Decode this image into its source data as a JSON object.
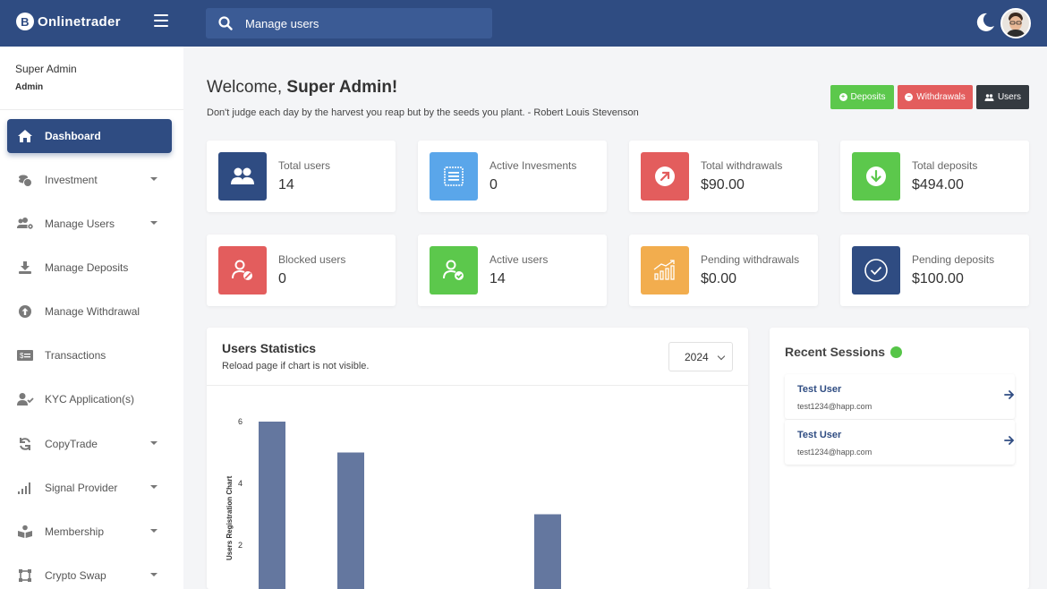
{
  "app": {
    "logo_text": "Onlinetrader",
    "logo_mark": "B"
  },
  "header": {
    "search_placeholder": "Manage users",
    "icons": [
      "menu-icon",
      "search-icon",
      "moon-icon"
    ]
  },
  "user": {
    "name": "Super Admin",
    "role": "Admin"
  },
  "sidebar": {
    "items": [
      {
        "label": "Dashboard",
        "icon": "home-icon",
        "active": true,
        "has_caret": false
      },
      {
        "label": "Investment",
        "icon": "coins-icon",
        "has_caret": true
      },
      {
        "label": "Manage Users",
        "icon": "users-cog-icon",
        "has_caret": true
      },
      {
        "label": "Manage Deposits",
        "icon": "download-icon",
        "has_caret": false
      },
      {
        "label": "Manage Withdrawal",
        "icon": "arrow-up-circle-icon",
        "has_caret": false
      },
      {
        "label": "Transactions",
        "icon": "money-bill-icon",
        "has_caret": false
      },
      {
        "label": "KYC Application(s)",
        "icon": "user-check-icon",
        "has_caret": false
      },
      {
        "label": "CopyTrade",
        "icon": "sync-icon",
        "has_caret": true
      },
      {
        "label": "Signal Provider",
        "icon": "signal-icon",
        "has_caret": true
      },
      {
        "label": "Membership",
        "icon": "book-reader-icon",
        "has_caret": true
      },
      {
        "label": "Crypto Swap",
        "icon": "vector-square-icon",
        "has_caret": true
      }
    ]
  },
  "main": {
    "welcome_prefix": "Welcome,",
    "welcome_name": "Super Admin!",
    "quote": "Don't judge each day by the harvest you reap but by the seeds you plant. - Robert Louis Stevenson",
    "quick_buttons": [
      {
        "label": "Deposits",
        "color": "#5cc84c"
      },
      {
        "label": "Withdrawals",
        "color": "#e35d5d"
      },
      {
        "label": "Users",
        "color": "#343a40"
      }
    ],
    "cards": [
      {
        "label": "Total users",
        "value": "14",
        "color": "#2f4c82",
        "icon": "users-icon"
      },
      {
        "label": "Active Invesments",
        "value": "0",
        "color": "#5aa6ea",
        "icon": "receipt-icon"
      },
      {
        "label": "Total withdrawals",
        "value": "$90.00",
        "color": "#e35d5d",
        "icon": "arrow-up-right-icon"
      },
      {
        "label": "Total deposits",
        "value": "$494.00",
        "color": "#5cc84c",
        "icon": "arrow-down-circle-icon"
      },
      {
        "label": "Blocked users",
        "value": "0",
        "color": "#e35d5d",
        "icon": "user-blocked-icon"
      },
      {
        "label": "Active users",
        "value": "14",
        "color": "#5cc84c",
        "icon": "user-check-icon"
      },
      {
        "label": "Pending withdrawals",
        "value": "$0.00",
        "color": "#f2ad4e",
        "icon": "growth-chart-icon"
      },
      {
        "label": "Pending deposits",
        "value": "$100.00",
        "color": "#2f4c82",
        "icon": "check-circle-icon"
      }
    ],
    "stats": {
      "title": "Users Statistics",
      "subtitle": "Reload page if chart is not visible.",
      "year": "2024"
    },
    "sessions": {
      "title": "Recent Sessions",
      "items": [
        {
          "name": "Test User",
          "email": "test1234@happ.com"
        },
        {
          "name": "Test User",
          "email": "test1234@happ.com"
        }
      ]
    }
  },
  "chart_data": {
    "type": "bar",
    "ylabel": "Users Registration Chart",
    "yticks": [
      "6",
      "4",
      "2"
    ],
    "ylim": [
      0,
      6
    ],
    "values": [
      6,
      5,
      0,
      3
    ],
    "color": "#64779f",
    "grid": false
  }
}
